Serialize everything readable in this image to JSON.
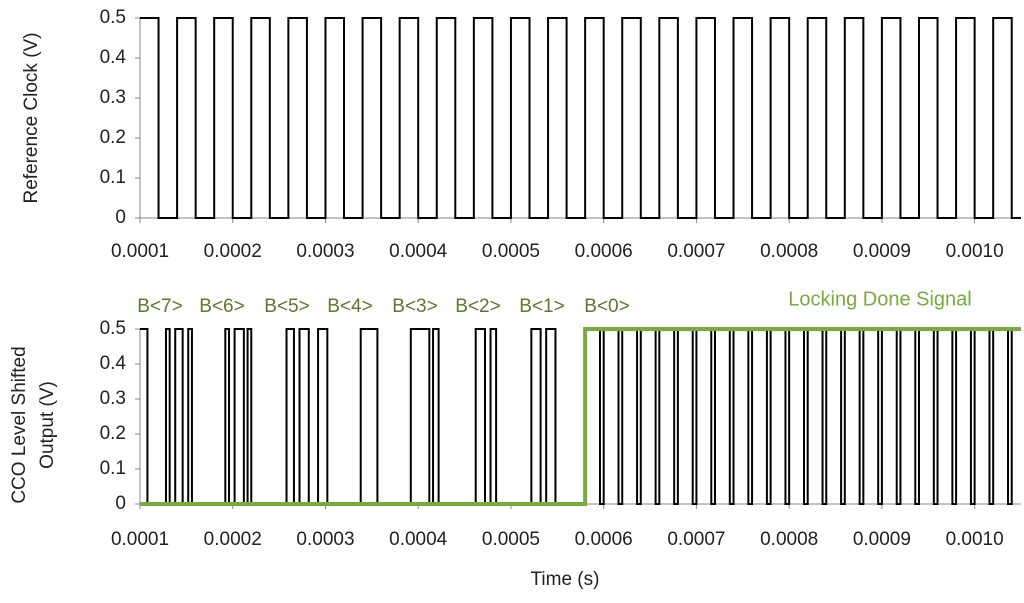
{
  "chart_data": [
    {
      "type": "line",
      "interpolation": "step",
      "ylabel": [
        "Reference Clock (V)"
      ],
      "xlim": [
        0.0001,
        0.00105
      ],
      "ylim": [
        0,
        0.5
      ],
      "xticks": [
        0.0001,
        0.0002,
        0.0003,
        0.0004,
        0.0005,
        0.0006,
        0.0007,
        0.0008,
        0.0009,
        {
          "value": 0.001,
          "label": "0.0010"
        }
      ],
      "yticks": [
        0,
        0.1,
        0.2,
        0.3,
        0.4,
        0.5
      ],
      "series": [
        {
          "name": "Reference Clock",
          "color": "#000000",
          "x": [
            0.0001,
            0.00012,
            0.00014,
            0.00016,
            0.00018,
            0.0002,
            0.00022,
            0.00024,
            0.00026,
            0.00028,
            0.0003,
            0.00032,
            0.00034,
            0.00036,
            0.00038,
            0.0004,
            0.00042,
            0.00044,
            0.00046,
            0.00048,
            0.0005,
            0.00052,
            0.00054,
            0.00056,
            0.00058,
            0.0006,
            0.00062,
            0.00064,
            0.00066,
            0.00068,
            0.0007,
            0.00072,
            0.00074,
            0.00076,
            0.00078,
            0.0008,
            0.00082,
            0.00084,
            0.00086,
            0.00088,
            0.0009,
            0.00092,
            0.00094,
            0.00096,
            0.00098,
            0.001,
            0.00102,
            0.00104
          ],
          "values": [
            0.5,
            0,
            0.5,
            0,
            0.5,
            0,
            0.5,
            0,
            0.5,
            0,
            0.5,
            0,
            0.5,
            0,
            0.5,
            0,
            0.5,
            0,
            0.5,
            0,
            0.5,
            0,
            0.5,
            0,
            0.5,
            0,
            0.5,
            0,
            0.5,
            0,
            0.5,
            0,
            0.5,
            0,
            0.5,
            0,
            0.5,
            0,
            0.5,
            0,
            0.5,
            0,
            0.5,
            0,
            0.5,
            0,
            0.5,
            0
          ]
        }
      ]
    },
    {
      "type": "line",
      "interpolation": "step",
      "ylabel": [
        "CCO Level Shifted",
        "Output (V)"
      ],
      "xlabel": "Time (s)",
      "xlim": [
        0.0001,
        0.00105
      ],
      "ylim": [
        0,
        0.5
      ],
      "xticks": [
        0.0001,
        0.0002,
        0.0003,
        0.0004,
        0.0005,
        0.0006,
        0.0007,
        0.0008,
        0.0009,
        {
          "value": 0.001,
          "label": "0.0010"
        }
      ],
      "yticks": [
        0,
        0.1,
        0.2,
        0.3,
        0.4,
        0.5
      ],
      "annotations": [
        "B<7>",
        "B<6>",
        "B<5>",
        "B<4>",
        "B<3>",
        "B<2>",
        "B<1>",
        "B<0>"
      ],
      "series": [
        {
          "name": "CCO Level Shifted Output",
          "color": "#000000",
          "x": [
            0.0001,
            0.000108,
            0.000128,
            0.000132,
            0.000138,
            0.000146,
            0.000152,
            0.000156,
            0.000192,
            0.000196,
            0.000202,
            0.000212,
            0.000216,
            0.00022,
            0.000258,
            0.000266,
            0.000272,
            0.000282,
            0.000292,
            0.000302,
            0.000338,
            0.000356,
            0.000392,
            0.000412,
            0.000416,
            0.000422,
            0.000462,
            0.000472,
            0.000478,
            0.000484,
            0.000522,
            0.000532,
            0.000538,
            0.000548,
            0.00058,
            0.000596,
            0.0006,
            0.000616,
            0.00062,
            0.000636,
            0.00064,
            0.000656,
            0.00066,
            0.000676,
            0.00068,
            0.000696,
            0.0007,
            0.000716,
            0.00072,
            0.000736,
            0.00074,
            0.000756,
            0.00076,
            0.000776,
            0.00078,
            0.000796,
            0.0008,
            0.000816,
            0.00082,
            0.000836,
            0.00084,
            0.000856,
            0.00086,
            0.000876,
            0.00088,
            0.000896,
            0.0009,
            0.000916,
            0.00092,
            0.000936,
            0.00094,
            0.000956,
            0.00096,
            0.000976,
            0.00098,
            0.000996,
            0.001,
            0.001016,
            0.00102,
            0.001036,
            0.00104
          ],
          "values": [
            0.5,
            0,
            0.5,
            0,
            0.5,
            0,
            0.5,
            0,
            0.5,
            0,
            0.5,
            0,
            0.5,
            0,
            0.5,
            0,
            0.5,
            0,
            0.5,
            0,
            0.5,
            0,
            0.5,
            0,
            0.5,
            0,
            0.5,
            0,
            0.5,
            0,
            0.5,
            0,
            0.5,
            0,
            0.5,
            0,
            0.5,
            0,
            0.5,
            0,
            0.5,
            0,
            0.5,
            0,
            0.5,
            0,
            0.5,
            0,
            0.5,
            0,
            0.5,
            0,
            0.5,
            0,
            0.5,
            0,
            0.5,
            0,
            0.5,
            0,
            0.5,
            0,
            0.5,
            0,
            0.5,
            0,
            0.5,
            0,
            0.5,
            0,
            0.5,
            0,
            0.5,
            0,
            0.5,
            0,
            0.5,
            0,
            0.5,
            0,
            0.5
          ]
        },
        {
          "name": "Locking Done Signal",
          "color": "#77ac3d",
          "x": [
            0.0001,
            0.00058
          ],
          "values": [
            0,
            0.5
          ]
        }
      ]
    }
  ]
}
